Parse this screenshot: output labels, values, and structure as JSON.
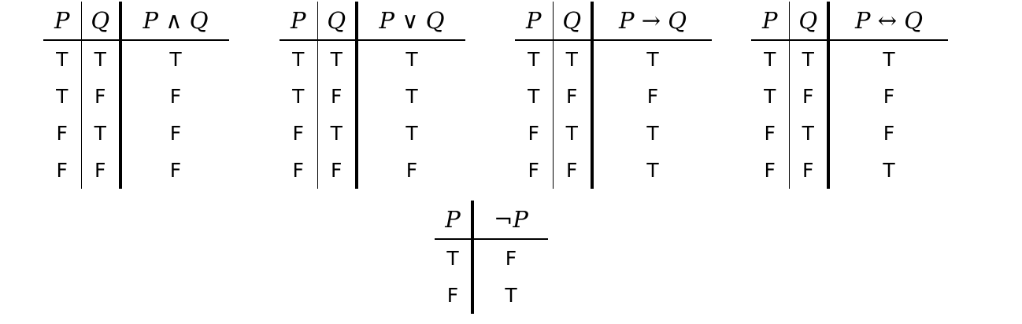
{
  "tables": {
    "and": {
      "headers": [
        "P",
        "Q",
        "P ∧ Q"
      ],
      "rows": [
        [
          "T",
          "T",
          "T"
        ],
        [
          "T",
          "F",
          "F"
        ],
        [
          "F",
          "T",
          "F"
        ],
        [
          "F",
          "F",
          "F"
        ]
      ]
    },
    "or": {
      "headers": [
        "P",
        "Q",
        "P ∨ Q"
      ],
      "rows": [
        [
          "T",
          "T",
          "T"
        ],
        [
          "T",
          "F",
          "T"
        ],
        [
          "F",
          "T",
          "T"
        ],
        [
          "F",
          "F",
          "F"
        ]
      ]
    },
    "implies": {
      "headers": [
        "P",
        "Q",
        "P → Q"
      ],
      "rows": [
        [
          "T",
          "T",
          "T"
        ],
        [
          "T",
          "F",
          "F"
        ],
        [
          "F",
          "T",
          "T"
        ],
        [
          "F",
          "F",
          "T"
        ]
      ]
    },
    "iff": {
      "headers": [
        "P",
        "Q",
        "P ↔ Q"
      ],
      "rows": [
        [
          "T",
          "T",
          "T"
        ],
        [
          "T",
          "F",
          "F"
        ],
        [
          "F",
          "T",
          "F"
        ],
        [
          "F",
          "F",
          "T"
        ]
      ]
    },
    "not": {
      "headers": [
        "P",
        "¬P"
      ],
      "rows": [
        [
          "T",
          "F"
        ],
        [
          "F",
          "T"
        ]
      ]
    }
  }
}
